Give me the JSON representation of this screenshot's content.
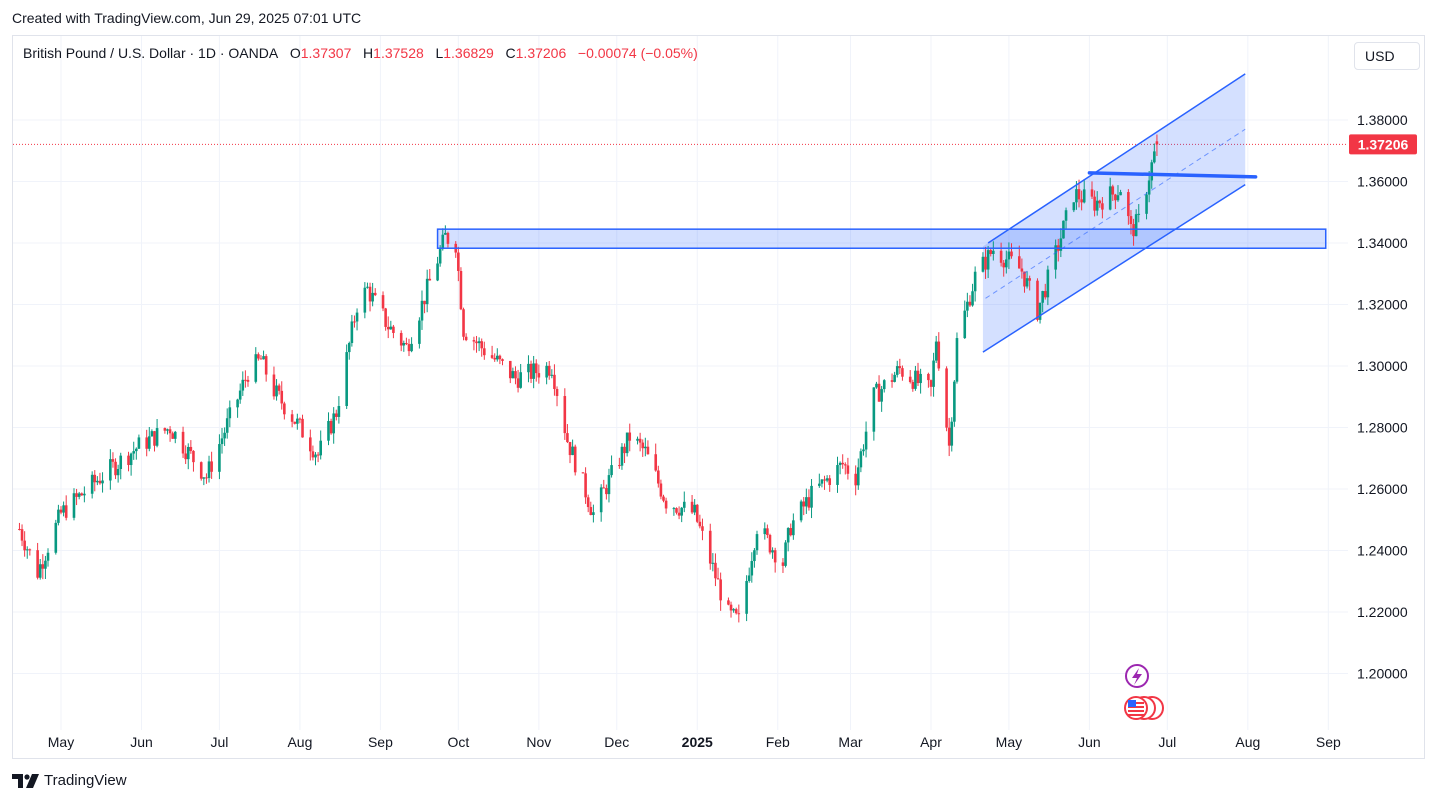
{
  "header": {
    "created": "Created with TradingView.com, Jun 29, 2025 07:01 UTC"
  },
  "legend": {
    "symbol": "British Pound / U.S. Dollar · 1D · OANDA",
    "o_label": "O",
    "o": "1.37307",
    "h_label": "H",
    "h": "1.37528",
    "l_label": "L",
    "l": "1.36829",
    "c_label": "C",
    "c": "1.37206",
    "change": "−0.00074 (−0.05%)"
  },
  "currency_button": "USD",
  "footer": {
    "logo_text": "TradingView"
  },
  "colors": {
    "up": "#089981",
    "down": "#f23645",
    "drawing": "#2962ff",
    "fill": "rgba(41,98,255,0.2)"
  },
  "icons": [
    "lightning-icon",
    "us-flag-icon"
  ],
  "chart_data": {
    "type": "candlestick",
    "ylim": [
      1.185,
      1.405
    ],
    "y_ticks": [
      "1.38000",
      "1.36000",
      "1.34000",
      "1.32000",
      "1.30000",
      "1.28000",
      "1.26000",
      "1.24000",
      "1.22000",
      "1.20000"
    ],
    "x_ticks": [
      "May",
      "Jun",
      "Jul",
      "Aug",
      "Sep",
      "Oct",
      "Nov",
      "Dec",
      "2025",
      "Feb",
      "Mar",
      "Apr",
      "May",
      "Jun",
      "Jul",
      "Aug",
      "Sep"
    ],
    "last_price": "1.37206",
    "anchors": [
      [
        "2024-04-15",
        1.247
      ],
      [
        "2024-04-22",
        1.233
      ],
      [
        "2024-05-01",
        1.252
      ],
      [
        "2024-05-15",
        1.263
      ],
      [
        "2024-05-31",
        1.274
      ],
      [
        "2024-06-12",
        1.28
      ],
      [
        "2024-06-26",
        1.264
      ],
      [
        "2024-07-12",
        1.298
      ],
      [
        "2024-07-17",
        1.302
      ],
      [
        "2024-07-22",
        1.292
      ],
      [
        "2024-08-01",
        1.28
      ],
      [
        "2024-08-08",
        1.271
      ],
      [
        "2024-08-15",
        1.285
      ],
      [
        "2024-08-23",
        1.32
      ],
      [
        "2024-08-27",
        1.325
      ],
      [
        "2024-09-04",
        1.313
      ],
      [
        "2024-09-11",
        1.306
      ],
      [
        "2024-09-17",
        1.32
      ],
      [
        "2024-09-26",
        1.342
      ],
      [
        "2024-09-30",
        1.34
      ],
      [
        "2024-10-03",
        1.312
      ],
      [
        "2024-10-10",
        1.306
      ],
      [
        "2024-10-23",
        1.296
      ],
      [
        "2024-11-06",
        1.3
      ],
      [
        "2024-11-12",
        1.276
      ],
      [
        "2024-11-22",
        1.252
      ],
      [
        "2024-12-06",
        1.277
      ],
      [
        "2024-12-12",
        1.272
      ],
      [
        "2024-12-20",
        1.256
      ],
      [
        "2024-12-31",
        1.252
      ],
      [
        "2025-01-13",
        1.219
      ],
      [
        "2025-01-17",
        1.217
      ],
      [
        "2025-01-24",
        1.248
      ],
      [
        "2025-02-03",
        1.236
      ],
      [
        "2025-02-06",
        1.248
      ],
      [
        "2025-02-14",
        1.258
      ],
      [
        "2025-02-26",
        1.268
      ],
      [
        "2025-03-03",
        1.264
      ],
      [
        "2025-03-10",
        1.29
      ],
      [
        "2025-03-20",
        1.299
      ],
      [
        "2025-03-28",
        1.294
      ],
      [
        "2025-04-01",
        1.292
      ],
      [
        "2025-04-03",
        1.309
      ],
      [
        "2025-04-08",
        1.274
      ],
      [
        "2025-04-11",
        1.308
      ],
      [
        "2025-04-18",
        1.329
      ],
      [
        "2025-04-25",
        1.338
      ],
      [
        "2025-05-06",
        1.331
      ],
      [
        "2025-05-12",
        1.318
      ],
      [
        "2025-05-16",
        1.328
      ],
      [
        "2025-05-26",
        1.356
      ],
      [
        "2025-06-03",
        1.353
      ],
      [
        "2025-06-10",
        1.356
      ],
      [
        "2025-06-13",
        1.358
      ],
      [
        "2025-06-17",
        1.344
      ],
      [
        "2025-06-20",
        1.347
      ],
      [
        "2025-06-24",
        1.362
      ],
      [
        "2025-06-27",
        1.372
      ]
    ],
    "drawings": {
      "rectangle_zone": {
        "x1": "2024-09-23",
        "x2": "2025-08-31",
        "y1": 1.3445,
        "y2": 1.3383
      },
      "channel_upper": [
        [
          "2025-04-23",
          1.34
        ],
        [
          "2025-07-31",
          1.395
        ]
      ],
      "channel_lower": [
        [
          "2025-04-21",
          1.3045
        ],
        [
          "2025-07-31",
          1.359
        ]
      ],
      "channel_fill_x": [
        "2025-04-21",
        "2025-07-31"
      ],
      "channel_mid": [
        [
          "2025-04-22",
          1.322
        ],
        [
          "2025-07-31",
          1.377
        ]
      ],
      "horizontal_line": [
        [
          "2025-06-01",
          1.3628
        ],
        [
          "2025-08-04",
          1.3615
        ]
      ]
    }
  }
}
